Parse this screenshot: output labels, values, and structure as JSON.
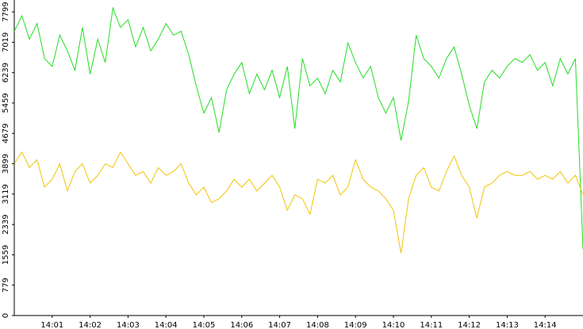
{
  "chart_data": {
    "type": "line",
    "x": [
      840.0,
      840.2,
      840.4,
      840.6,
      840.8,
      841.0,
      841.2,
      841.4,
      841.6,
      841.8,
      842.0,
      842.2,
      842.4,
      842.6,
      842.8,
      843.0,
      843.2,
      843.4,
      843.6,
      843.8,
      844.0,
      844.2,
      844.4,
      844.6,
      844.8,
      845.0,
      845.2,
      845.4,
      845.6,
      845.8,
      846.0,
      846.2,
      846.4,
      846.6,
      846.8,
      847.0,
      847.2,
      847.4,
      847.6,
      847.8,
      848.0,
      848.2,
      848.4,
      848.6,
      848.8,
      849.0,
      849.2,
      849.4,
      849.6,
      849.8,
      850.0,
      850.2,
      850.4,
      850.6,
      850.8,
      851.0,
      851.2,
      851.4,
      851.6,
      851.8,
      852.0,
      852.2,
      852.4,
      852.6,
      852.8,
      853.0,
      853.2,
      853.4,
      853.6,
      853.8,
      854.0,
      854.2,
      854.4,
      854.6,
      854.8,
      855.0
    ],
    "series": [
      {
        "color": "#22dd22",
        "values": [
          7300,
          7700,
          7100,
          7500,
          6600,
          6400,
          7200,
          6800,
          6300,
          7400,
          6200,
          7100,
          6500,
          7900,
          7400,
          7600,
          6900,
          7400,
          6800,
          7100,
          7500,
          7200,
          7300,
          6700,
          5900,
          5200,
          5600,
          4700,
          5800,
          6200,
          6500,
          5700,
          6200,
          5800,
          6300,
          5600,
          6400,
          4800,
          6600,
          5900,
          6100,
          5700,
          6300,
          6000,
          7000,
          6500,
          6100,
          6400,
          5600,
          5200,
          5600,
          4500,
          5500,
          7200,
          6600,
          6400,
          6100,
          6600,
          6900,
          6200,
          5400,
          4800,
          6000,
          6300,
          6100,
          6400,
          6600,
          6500,
          6700,
          6300,
          6500,
          5900,
          6600,
          6200,
          6600,
          1700
        ]
      },
      {
        "color": "#f2c40a",
        "values": [
          3900,
          4200,
          3800,
          4000,
          3300,
          3500,
          3900,
          3200,
          3700,
          3900,
          3400,
          3600,
          3900,
          3800,
          4200,
          3900,
          3600,
          3700,
          3400,
          3800,
          3600,
          3700,
          3900,
          3400,
          3100,
          3300,
          2900,
          3000,
          3200,
          3500,
          3300,
          3500,
          3200,
          3400,
          3600,
          3300,
          2700,
          3100,
          3000,
          2600,
          3500,
          3400,
          3600,
          3100,
          3300,
          4000,
          3500,
          3300,
          3200,
          3000,
          2700,
          1600,
          3000,
          3600,
          3800,
          3300,
          3200,
          3700,
          4100,
          3600,
          3300,
          2500,
          3300,
          3400,
          3600,
          3700,
          3600,
          3600,
          3700,
          3500,
          3600,
          3500,
          3700,
          3400,
          3600,
          3100
        ]
      }
    ],
    "xlim": [
      840,
      855
    ],
    "ylim": [
      0,
      8105
    ],
    "xticks": [
      {
        "value": 841,
        "label": "14:01"
      },
      {
        "value": 842,
        "label": "14:02"
      },
      {
        "value": 843,
        "label": "14:03"
      },
      {
        "value": 844,
        "label": "14:04"
      },
      {
        "value": 845,
        "label": "14:05"
      },
      {
        "value": 846,
        "label": "14:06"
      },
      {
        "value": 847,
        "label": "14:07"
      },
      {
        "value": 848,
        "label": "14:08"
      },
      {
        "value": 849,
        "label": "14:09"
      },
      {
        "value": 850,
        "label": "14:10"
      },
      {
        "value": 851,
        "label": "14:11"
      },
      {
        "value": 852,
        "label": "14:12"
      },
      {
        "value": 853,
        "label": "14:13"
      },
      {
        "value": 854,
        "label": "14:14"
      }
    ],
    "yticks": [
      0,
      779,
      1559,
      2339,
      3119,
      3899,
      4679,
      5459,
      6239,
      7019,
      7799
    ]
  }
}
